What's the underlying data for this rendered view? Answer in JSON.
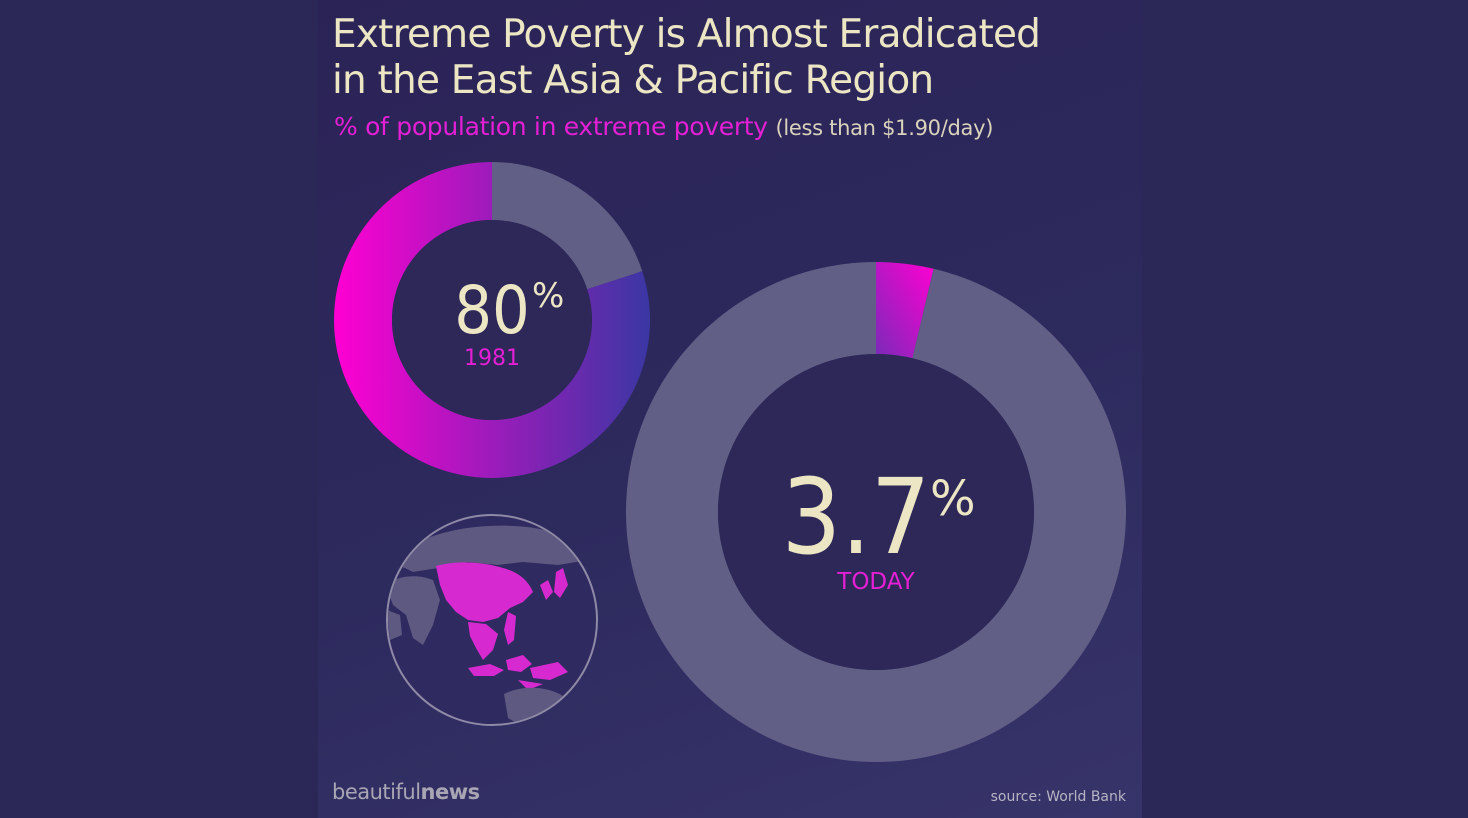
{
  "header": {
    "title_line1": "Extreme Poverty is Almost Eradicated",
    "title_line2": "in the East Asia & Pacific Region",
    "subtitle_main": "% of population in extreme poverty",
    "subtitle_note": "(less than $1.90/day)"
  },
  "footer": {
    "brand_prefix": "beautiful",
    "brand_suffix": "news",
    "source": "source: World Bank"
  },
  "colors": {
    "background": "#2b2757",
    "remainder": "#625f86",
    "accent_magenta": "#ff00d2",
    "accent_blue": "#3a37a3",
    "hole": "#2d2858",
    "text_light": "#ece6c4"
  },
  "chart_data": {
    "type": "pie",
    "subtype": "donut",
    "title": "Extreme Poverty is Almost Eradicated in the East Asia & Pacific Region",
    "subtitle": "% of population in extreme poverty (less than $1.90/day)",
    "charts": [
      {
        "label": "1981",
        "value_text": "80",
        "unit": "%",
        "slices": [
          {
            "value": 80
          },
          {
            "value": 20
          }
        ]
      },
      {
        "label": "TODAY",
        "value_text": "3.7",
        "unit": "%",
        "slices": [
          {
            "value": 3.7
          },
          {
            "value": 96.3
          }
        ]
      }
    ]
  }
}
